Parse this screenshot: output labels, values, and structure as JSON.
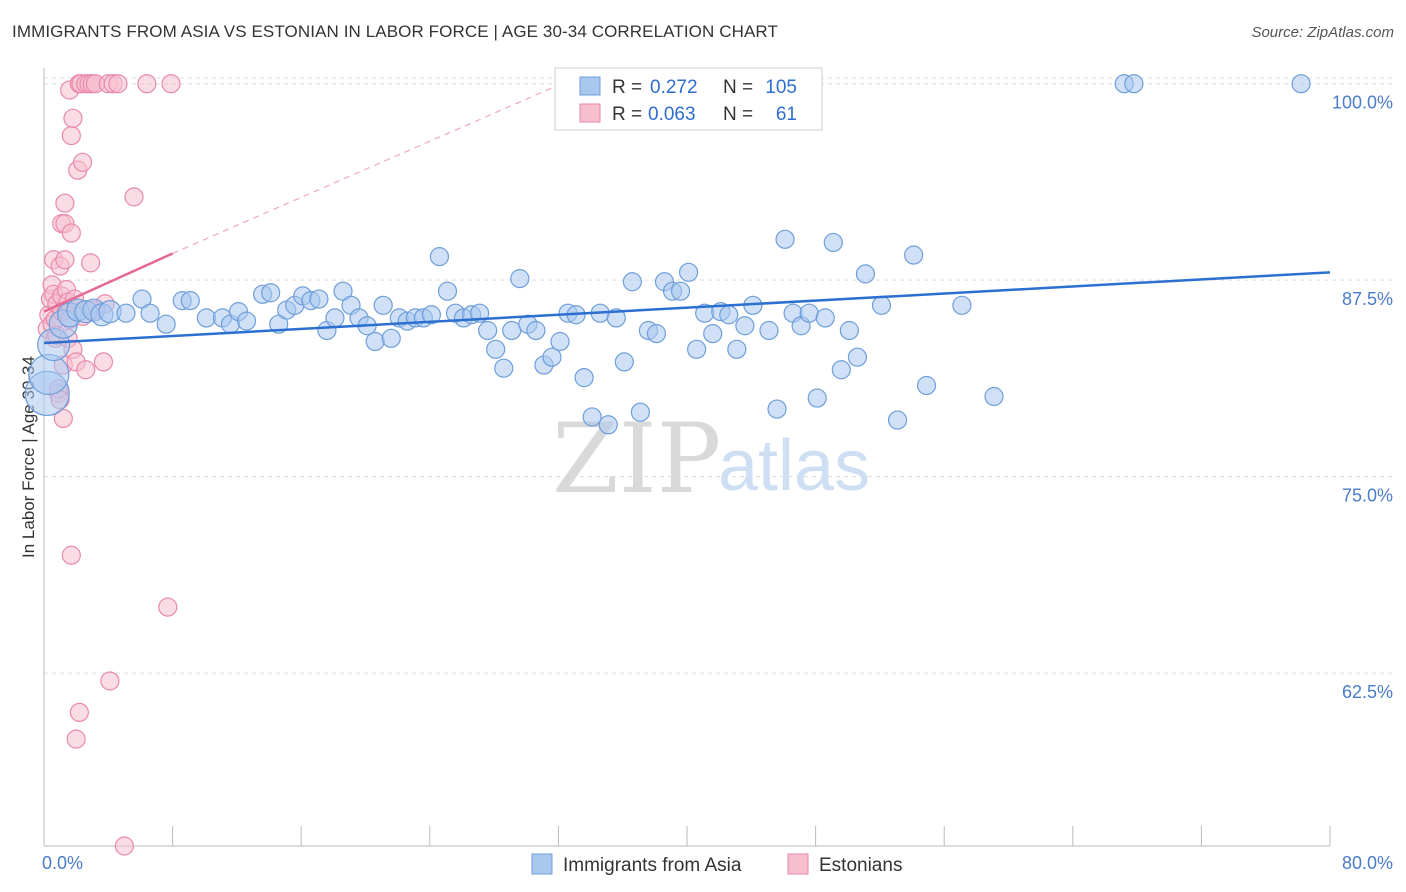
{
  "title": "IMMIGRANTS FROM ASIA VS ESTONIAN IN LABOR FORCE | AGE 30-34 CORRELATION CHART",
  "source": "Source: ZipAtlas.com",
  "watermark": {
    "zip": "ZIP",
    "atlas": "atlas"
  },
  "colors": {
    "blue": "#a9c8f0",
    "blue_edge": "#6f9ed9",
    "blue_line": "#2b6fd1",
    "pink": "#f6bfd0",
    "pink_edge": "#e98aa9",
    "pink_line": "#e46a93",
    "tick_text": "#4a7cc9"
  },
  "chart_data": {
    "type": "scatter",
    "title": "IMMIGRANTS FROM ASIA VS ESTONIAN IN LABOR FORCE | AGE 30-34 CORRELATION CHART",
    "xlabel": "",
    "ylabel": "In Labor Force | Age 30-34",
    "xlim": [
      0,
      80
    ],
    "ylim": [
      51.5,
      101
    ],
    "x_tick_labels": [
      "0.0%",
      "80.0%"
    ],
    "y_ticks": [
      62.5,
      75.0,
      87.5,
      100.0
    ],
    "y_tick_labels": [
      "62.5%",
      "75.0%",
      "87.5%",
      "100.0%"
    ],
    "grid": true,
    "legend": {
      "position": "top-center",
      "entries": [
        {
          "series": "Immigrants from Asia",
          "r_label": "R =",
          "r_value": "0.272",
          "n_label": "N =",
          "n_value": "105"
        },
        {
          "series": "Estonians",
          "r_label": "R =",
          "r_value": "0.063",
          "n_label": "N =",
          "n_value": "61"
        }
      ]
    },
    "series": [
      {
        "name": "Immigrants from Asia",
        "color": "#a9c8f0",
        "trend": {
          "x": [
            0,
            80
          ],
          "y": [
            83.5,
            88.0
          ]
        },
        "points": [
          [
            0.2,
            80.3,
            22
          ],
          [
            0.3,
            81.5,
            20
          ],
          [
            0.6,
            83.4,
            16
          ],
          [
            1.2,
            84.7,
            14
          ],
          [
            1.6,
            85.3,
            12
          ],
          [
            2.1,
            85.6,
            11
          ],
          [
            2.6,
            85.5,
            11
          ],
          [
            3.1,
            85.6,
            11
          ],
          [
            3.6,
            85.3,
            11
          ],
          [
            4.1,
            85.5,
            11
          ],
          [
            5.1,
            85.4,
            9
          ],
          [
            6.1,
            86.3,
            9
          ],
          [
            6.6,
            85.4,
            9
          ],
          [
            7.6,
            84.7,
            9
          ],
          [
            8.6,
            86.2,
            9
          ],
          [
            9.1,
            86.2,
            9
          ],
          [
            10.1,
            85.1,
            9
          ],
          [
            11.1,
            85.1,
            9
          ],
          [
            11.6,
            84.7,
            9
          ],
          [
            12.1,
            85.5,
            9
          ],
          [
            12.6,
            84.9,
            9
          ],
          [
            13.6,
            86.6,
            9
          ],
          [
            14.1,
            86.7,
            9
          ],
          [
            14.6,
            84.7,
            9
          ],
          [
            15.1,
            85.6,
            9
          ],
          [
            15.6,
            85.9,
            9
          ],
          [
            16.1,
            86.5,
            9
          ],
          [
            16.6,
            86.2,
            9
          ],
          [
            17.1,
            86.3,
            9
          ],
          [
            17.6,
            84.3,
            9
          ],
          [
            18.1,
            85.1,
            9
          ],
          [
            18.6,
            86.8,
            9
          ],
          [
            19.1,
            85.9,
            9
          ],
          [
            19.6,
            85.1,
            9
          ],
          [
            20.1,
            84.6,
            9
          ],
          [
            20.6,
            83.6,
            9
          ],
          [
            21.1,
            85.9,
            9
          ],
          [
            21.6,
            83.8,
            9
          ],
          [
            22.1,
            85.1,
            9
          ],
          [
            22.6,
            84.9,
            9
          ],
          [
            23.1,
            85.1,
            9
          ],
          [
            23.6,
            85.1,
            9
          ],
          [
            24.1,
            85.3,
            9
          ],
          [
            24.6,
            89.0,
            9
          ],
          [
            25.1,
            86.8,
            9
          ],
          [
            25.6,
            85.4,
            9
          ],
          [
            26.1,
            85.1,
            9
          ],
          [
            26.6,
            85.3,
            9
          ],
          [
            27.1,
            85.4,
            9
          ],
          [
            27.6,
            84.3,
            9
          ],
          [
            28.1,
            83.1,
            9
          ],
          [
            28.6,
            81.9,
            9
          ],
          [
            29.1,
            84.3,
            9
          ],
          [
            29.6,
            87.6,
            9
          ],
          [
            30.1,
            84.7,
            9
          ],
          [
            30.6,
            84.3,
            9
          ],
          [
            31.1,
            82.1,
            9
          ],
          [
            31.6,
            82.6,
            9
          ],
          [
            32.1,
            83.6,
            9
          ],
          [
            32.6,
            85.4,
            9
          ],
          [
            33.1,
            85.3,
            9
          ],
          [
            33.6,
            81.3,
            9
          ],
          [
            34.1,
            78.8,
            9
          ],
          [
            34.6,
            85.4,
            9
          ],
          [
            35.1,
            78.3,
            9
          ],
          [
            35.6,
            85.1,
            9
          ],
          [
            36.1,
            82.3,
            9
          ],
          [
            36.6,
            87.4,
            9
          ],
          [
            37.1,
            79.1,
            9
          ],
          [
            37.6,
            84.3,
            9
          ],
          [
            38.1,
            84.1,
            9
          ],
          [
            38.6,
            87.4,
            9
          ],
          [
            39.1,
            86.8,
            9
          ],
          [
            39.6,
            86.8,
            9
          ],
          [
            40.1,
            88.0,
            9
          ],
          [
            40.6,
            83.1,
            9
          ],
          [
            41.1,
            85.4,
            9
          ],
          [
            41.6,
            84.1,
            9
          ],
          [
            42.1,
            85.5,
            9
          ],
          [
            42.6,
            85.3,
            9
          ],
          [
            43.1,
            83.1,
            9
          ],
          [
            43.6,
            84.6,
            9
          ],
          [
            44.1,
            85.9,
            9
          ],
          [
            45.1,
            84.3,
            9
          ],
          [
            45.6,
            79.3,
            9
          ],
          [
            46.1,
            90.1,
            9
          ],
          [
            46.6,
            85.4,
            9
          ],
          [
            47.1,
            84.6,
            9
          ],
          [
            47.6,
            85.4,
            9
          ],
          [
            48.1,
            80.0,
            9
          ],
          [
            48.6,
            85.1,
            9
          ],
          [
            49.1,
            89.9,
            9
          ],
          [
            49.6,
            81.8,
            9
          ],
          [
            50.1,
            84.3,
            9
          ],
          [
            50.6,
            82.6,
            9
          ],
          [
            51.1,
            87.9,
            9
          ],
          [
            52.1,
            85.9,
            9
          ],
          [
            53.1,
            78.6,
            9
          ],
          [
            54.1,
            89.1,
            9
          ],
          [
            54.9,
            80.8,
            9
          ],
          [
            57.1,
            85.9,
            9
          ],
          [
            59.1,
            80.1,
            9
          ],
          [
            67.2,
            100.0,
            9
          ],
          [
            67.8,
            100.0,
            9
          ],
          [
            78.2,
            100.0,
            9
          ]
        ]
      },
      {
        "name": "Estonians",
        "color": "#f6bfd0",
        "trend": {
          "x": [
            0,
            8
          ],
          "y": [
            85.5,
            89.2
          ]
        },
        "trend_extension": {
          "x": [
            8,
            34
          ],
          "y": [
            89.2,
            100.8
          ]
        },
        "points": [
          [
            0.2,
            84.4,
            9
          ],
          [
            0.3,
            85.3,
            9
          ],
          [
            0.4,
            86.3,
            9
          ],
          [
            0.5,
            87.2,
            9
          ],
          [
            0.5,
            84.7,
            9
          ],
          [
            0.6,
            88.8,
            9
          ],
          [
            0.6,
            86.6,
            9
          ],
          [
            0.7,
            85.0,
            9
          ],
          [
            0.7,
            83.8,
            9
          ],
          [
            0.8,
            86.0,
            9
          ],
          [
            0.8,
            84.0,
            9
          ],
          [
            0.9,
            80.3,
            9
          ],
          [
            0.9,
            80.6,
            9
          ],
          [
            1.0,
            79.9,
            9
          ],
          [
            1.0,
            88.4,
            9
          ],
          [
            1.1,
            91.1,
            9
          ],
          [
            1.1,
            86.5,
            9
          ],
          [
            1.1,
            85.5,
            9
          ],
          [
            1.2,
            78.7,
            9
          ],
          [
            1.2,
            82.1,
            9
          ],
          [
            1.3,
            92.4,
            9
          ],
          [
            1.3,
            91.1,
            9
          ],
          [
            1.3,
            88.8,
            9
          ],
          [
            1.4,
            86.9,
            9
          ],
          [
            1.4,
            85.6,
            9
          ],
          [
            1.5,
            83.8,
            9
          ],
          [
            1.5,
            86.1,
            9
          ],
          [
            1.6,
            85.0,
            9
          ],
          [
            1.6,
            99.6,
            9
          ],
          [
            1.7,
            70.0,
            9
          ],
          [
            1.7,
            90.5,
            9
          ],
          [
            1.7,
            96.7,
            9
          ],
          [
            1.8,
            83.1,
            9
          ],
          [
            1.8,
            97.8,
            9
          ],
          [
            1.9,
            86.3,
            9
          ],
          [
            2.0,
            82.3,
            9
          ],
          [
            2.0,
            58.3,
            9
          ],
          [
            2.1,
            94.5,
            9
          ],
          [
            2.2,
            100.0,
            9
          ],
          [
            2.2,
            60.0,
            9
          ],
          [
            2.3,
            100.0,
            9
          ],
          [
            2.4,
            85.2,
            9
          ],
          [
            2.4,
            95.0,
            9
          ],
          [
            2.6,
            100.0,
            9
          ],
          [
            2.6,
            81.8,
            9
          ],
          [
            2.8,
            100.0,
            9
          ],
          [
            2.9,
            88.6,
            9
          ],
          [
            3.0,
            100.0,
            9
          ],
          [
            3.2,
            100.0,
            9
          ],
          [
            3.1,
            85.6,
            9
          ],
          [
            3.7,
            82.3,
            9
          ],
          [
            3.8,
            86.0,
            9
          ],
          [
            4.0,
            100.0,
            9
          ],
          [
            4.1,
            62.0,
            9
          ],
          [
            4.3,
            100.0,
            9
          ],
          [
            4.6,
            100.0,
            9
          ],
          [
            5.0,
            51.5,
            9
          ],
          [
            5.6,
            92.8,
            9
          ],
          [
            6.4,
            100.0,
            9
          ],
          [
            7.7,
            66.7,
            9
          ],
          [
            7.9,
            100.0,
            9
          ]
        ]
      }
    ]
  }
}
